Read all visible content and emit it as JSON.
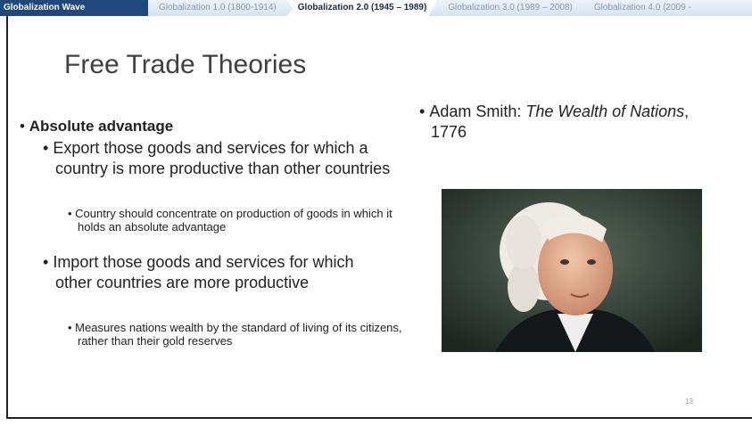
{
  "nav": {
    "tabs": [
      "Globalization Wave",
      "Globalization 1.0 (1800-1914)",
      "Globalization 2.0 (1945 – 1989)",
      "Globalization 3.0 (1989 – 2008)",
      "Globalization 4.0 (2009 -"
    ]
  },
  "title": "Free Trade Theories",
  "left": [
    {
      "text": "Absolute advantage",
      "items": [
        {
          "text": "Export those goods and services for which a country is more productive than other countries",
          "items": [
            "Country should concentrate on production of goods in which it holds an absolute advantage"
          ]
        },
        {
          "text": "Import those goods and services for which other countries are more productive",
          "items": [
            "Measures nations wealth by the standard of living of its citizens, rather than their gold reserves"
          ]
        }
      ]
    }
  ],
  "right": {
    "prefix": "Adam Smith: ",
    "book": "The Wealth of Nations",
    "suffix": ", 1776"
  },
  "page_number": "13"
}
